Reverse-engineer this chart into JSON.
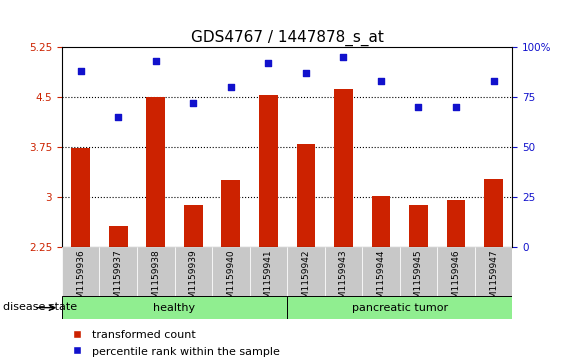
{
  "title": "GDS4767 / 1447878_s_at",
  "samples": [
    "GSM1159936",
    "GSM1159937",
    "GSM1159938",
    "GSM1159939",
    "GSM1159940",
    "GSM1159941",
    "GSM1159942",
    "GSM1159943",
    "GSM1159944",
    "GSM1159945",
    "GSM1159946",
    "GSM1159947"
  ],
  "bar_values": [
    3.73,
    2.56,
    4.5,
    2.88,
    3.25,
    4.53,
    3.8,
    4.62,
    3.02,
    2.88,
    2.95,
    3.27
  ],
  "dot_values_pct": [
    88,
    65,
    93,
    72,
    80,
    92,
    87,
    95,
    83,
    70,
    70,
    83
  ],
  "bar_color": "#cc2200",
  "dot_color": "#1111cc",
  "ylim_left": [
    2.25,
    5.25
  ],
  "ylim_right": [
    0,
    100
  ],
  "yticks_left": [
    2.25,
    3.0,
    3.75,
    4.5,
    5.25
  ],
  "yticks_right": [
    0,
    25,
    50,
    75,
    100
  ],
  "ytick_labels_left": [
    "2.25",
    "3",
    "3.75",
    "4.5",
    "5.25"
  ],
  "ytick_labels_right": [
    "0",
    "25",
    "50",
    "75",
    "100%"
  ],
  "hlines": [
    3.0,
    3.75,
    4.5
  ],
  "groups": [
    {
      "label": "healthy",
      "start": 0,
      "end": 6
    },
    {
      "label": "pancreatic tumor",
      "start": 6,
      "end": 12
    }
  ],
  "group_color": "#90ee90",
  "group_label": "disease state",
  "legend_items": [
    {
      "color": "#cc2200",
      "label": "transformed count"
    },
    {
      "color": "#1111cc",
      "label": "percentile rank within the sample"
    }
  ],
  "bar_width": 0.5,
  "tick_label_color_left": "#cc2200",
  "tick_label_color_right": "#1111cc",
  "xlabel_bg": "#c8c8c8",
  "title_fontsize": 11,
  "tick_fontsize": 7.5,
  "label_fontsize": 8
}
